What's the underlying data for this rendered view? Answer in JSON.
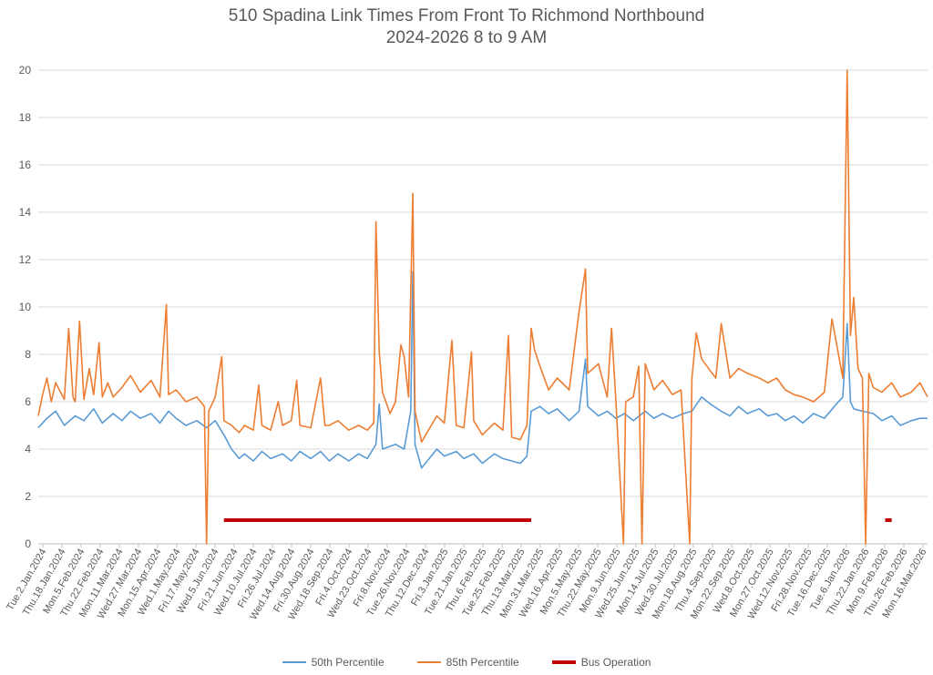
{
  "chart_data": {
    "type": "line",
    "title": "510 Spadina Link Times From Front To Richmond Northbound",
    "subtitle": "2024-2026 8 to 9 AM",
    "ylim": [
      0,
      20
    ],
    "yticks": [
      0,
      2,
      4,
      6,
      8,
      10,
      12,
      14,
      16,
      18,
      20
    ],
    "grid": true,
    "legend_position": "bottom",
    "x_range": [
      "2024-01-02",
      "2026-03-31"
    ],
    "x_tick_labels": [
      "Tue.2.Jan.2024",
      "Thu.18.Jan.2024",
      "Mon.5.Feb.2024",
      "Thu.22.Feb.2024",
      "Mon.11.Mar.2024",
      "Wed.27.Mar.2024",
      "Mon.15.Apr.2024",
      "Wed.1.May.2024",
      "Fri.17.May.2024",
      "Wed.5.Jun.2024",
      "Fri.21.Jun.2024",
      "Wed.10.Jul.2024",
      "Fri.26.Jul.2024",
      "Wed.14.Aug.2024",
      "Fri.30.Aug.2024",
      "Wed.18.Sep.2024",
      "Fri.4.Oct.2024",
      "Wed.23.Oct.2024",
      "Fri.8.Nov.2024",
      "Tue.26.Nov.2024",
      "Thu.12.Dec.2024",
      "Fri.3.Jan.2025",
      "Tue.21.Jan.2025",
      "Thu.6.Feb.2025",
      "Tue.25.Feb.2025",
      "Thu.13.Mar.2025",
      "Mon.31.Mar.2025",
      "Wed.16.Apr.2025",
      "Mon.5.May.2025",
      "Thu.22.May.2025",
      "Mon.9.Jun.2025",
      "Wed.25.Jun.2025",
      "Mon.14.Jul.2025",
      "Wed.30.Jul.2025",
      "Mon.18.Aug.2025",
      "Thu.4.Sep.2025",
      "Mon.22.Sep.2025",
      "Wed.8.Oct.2025",
      "Mon.27.Oct.2025",
      "Wed.12.Nov.2025",
      "Fri.28.Nov.2025",
      "Tue.16.Dec.2025",
      "Tue.6.Jan.2026",
      "Thu.22.Jan.2026",
      "Mon.9.Feb.2026",
      "Thu.26.Feb.2026",
      "Mon.16.Mar.2026"
    ],
    "series": [
      {
        "name": "50th Percentile",
        "color": "#5b9bd5",
        "points": [
          [
            "2024-01-02",
            4.9
          ],
          [
            "2024-01-10",
            5.3
          ],
          [
            "2024-01-18",
            5.6
          ],
          [
            "2024-01-26",
            5.0
          ],
          [
            "2024-02-05",
            5.4
          ],
          [
            "2024-02-13",
            5.2
          ],
          [
            "2024-02-22",
            5.7
          ],
          [
            "2024-03-01",
            5.1
          ],
          [
            "2024-03-11",
            5.5
          ],
          [
            "2024-03-19",
            5.2
          ],
          [
            "2024-03-27",
            5.6
          ],
          [
            "2024-04-05",
            5.3
          ],
          [
            "2024-04-15",
            5.5
          ],
          [
            "2024-04-23",
            5.1
          ],
          [
            "2024-05-01",
            5.6
          ],
          [
            "2024-05-08",
            5.3
          ],
          [
            "2024-05-17",
            5.0
          ],
          [
            "2024-05-27",
            5.2
          ],
          [
            "2024-06-05",
            4.9
          ],
          [
            "2024-06-13",
            5.2
          ],
          [
            "2024-06-21",
            4.6
          ],
          [
            "2024-06-28",
            4.0
          ],
          [
            "2024-07-05",
            3.6
          ],
          [
            "2024-07-10",
            3.8
          ],
          [
            "2024-07-18",
            3.5
          ],
          [
            "2024-07-26",
            3.9
          ],
          [
            "2024-08-03",
            3.6
          ],
          [
            "2024-08-14",
            3.8
          ],
          [
            "2024-08-22",
            3.5
          ],
          [
            "2024-08-30",
            3.9
          ],
          [
            "2024-09-09",
            3.6
          ],
          [
            "2024-09-18",
            3.9
          ],
          [
            "2024-09-26",
            3.5
          ],
          [
            "2024-10-04",
            3.8
          ],
          [
            "2024-10-14",
            3.5
          ],
          [
            "2024-10-23",
            3.8
          ],
          [
            "2024-10-31",
            3.6
          ],
          [
            "2024-11-08",
            4.2
          ],
          [
            "2024-11-11",
            5.9
          ],
          [
            "2024-11-14",
            4.0
          ],
          [
            "2024-11-26",
            4.2
          ],
          [
            "2024-12-04",
            4.0
          ],
          [
            "2024-12-10",
            5.6
          ],
          [
            "2024-12-12",
            11.5
          ],
          [
            "2024-12-14",
            4.2
          ],
          [
            "2024-12-20",
            3.2
          ],
          [
            "2025-01-03",
            4.0
          ],
          [
            "2025-01-10",
            3.7
          ],
          [
            "2025-01-21",
            3.9
          ],
          [
            "2025-01-28",
            3.6
          ],
          [
            "2025-02-06",
            3.8
          ],
          [
            "2025-02-14",
            3.4
          ],
          [
            "2025-02-25",
            3.8
          ],
          [
            "2025-03-05",
            3.6
          ],
          [
            "2025-03-13",
            3.5
          ],
          [
            "2025-03-21",
            3.4
          ],
          [
            "2025-03-27",
            3.7
          ],
          [
            "2025-03-31",
            5.6
          ],
          [
            "2025-04-08",
            5.8
          ],
          [
            "2025-04-16",
            5.5
          ],
          [
            "2025-04-24",
            5.7
          ],
          [
            "2025-05-05",
            5.2
          ],
          [
            "2025-05-14",
            5.6
          ],
          [
            "2025-05-20",
            7.8
          ],
          [
            "2025-05-22",
            5.8
          ],
          [
            "2025-06-01",
            5.4
          ],
          [
            "2025-06-09",
            5.6
          ],
          [
            "2025-06-17",
            5.3
          ],
          [
            "2025-06-25",
            5.5
          ],
          [
            "2025-07-03",
            5.2
          ],
          [
            "2025-07-14",
            5.6
          ],
          [
            "2025-07-22",
            5.3
          ],
          [
            "2025-07-30",
            5.5
          ],
          [
            "2025-08-08",
            5.3
          ],
          [
            "2025-08-18",
            5.5
          ],
          [
            "2025-08-26",
            5.6
          ],
          [
            "2025-09-04",
            6.2
          ],
          [
            "2025-09-12",
            5.9
          ],
          [
            "2025-09-22",
            5.6
          ],
          [
            "2025-09-30",
            5.4
          ],
          [
            "2025-10-08",
            5.8
          ],
          [
            "2025-10-16",
            5.5
          ],
          [
            "2025-10-27",
            5.7
          ],
          [
            "2025-11-04",
            5.4
          ],
          [
            "2025-11-12",
            5.5
          ],
          [
            "2025-11-20",
            5.2
          ],
          [
            "2025-11-28",
            5.4
          ],
          [
            "2025-12-06",
            5.1
          ],
          [
            "2025-12-16",
            5.5
          ],
          [
            "2025-12-26",
            5.3
          ],
          [
            "2026-01-06",
            5.9
          ],
          [
            "2026-01-12",
            6.2
          ],
          [
            "2026-01-16",
            9.3
          ],
          [
            "2026-01-19",
            6.0
          ],
          [
            "2026-01-22",
            5.7
          ],
          [
            "2026-01-30",
            5.6
          ],
          [
            "2026-02-09",
            5.5
          ],
          [
            "2026-02-17",
            5.2
          ],
          [
            "2026-02-26",
            5.4
          ],
          [
            "2026-03-06",
            5.0
          ],
          [
            "2026-03-16",
            5.2
          ],
          [
            "2026-03-24",
            5.3
          ],
          [
            "2026-03-31",
            5.3
          ]
        ]
      },
      {
        "name": "85th Percentile",
        "color": "#ed7d31",
        "points": [
          [
            "2024-01-02",
            5.4
          ],
          [
            "2024-01-06",
            6.3
          ],
          [
            "2024-01-10",
            7.0
          ],
          [
            "2024-01-14",
            6.0
          ],
          [
            "2024-01-18",
            6.8
          ],
          [
            "2024-01-26",
            6.1
          ],
          [
            "2024-01-30",
            9.1
          ],
          [
            "2024-02-03",
            6.2
          ],
          [
            "2024-02-05",
            6.0
          ],
          [
            "2024-02-09",
            9.4
          ],
          [
            "2024-02-13",
            6.1
          ],
          [
            "2024-02-18",
            7.4
          ],
          [
            "2024-02-22",
            6.3
          ],
          [
            "2024-02-27",
            8.5
          ],
          [
            "2024-03-01",
            6.2
          ],
          [
            "2024-03-06",
            6.8
          ],
          [
            "2024-03-11",
            6.2
          ],
          [
            "2024-03-19",
            6.6
          ],
          [
            "2024-03-27",
            7.1
          ],
          [
            "2024-04-05",
            6.4
          ],
          [
            "2024-04-15",
            6.9
          ],
          [
            "2024-04-23",
            6.2
          ],
          [
            "2024-04-29",
            10.1
          ],
          [
            "2024-05-01",
            6.3
          ],
          [
            "2024-05-08",
            6.5
          ],
          [
            "2024-05-17",
            6.0
          ],
          [
            "2024-05-27",
            6.2
          ],
          [
            "2024-06-03",
            5.8
          ],
          [
            "2024-06-05",
            0.0
          ],
          [
            "2024-06-07",
            5.6
          ],
          [
            "2024-06-13",
            6.2
          ],
          [
            "2024-06-19",
            7.9
          ],
          [
            "2024-06-21",
            5.2
          ],
          [
            "2024-06-28",
            5.0
          ],
          [
            "2024-07-05",
            4.7
          ],
          [
            "2024-07-10",
            5.0
          ],
          [
            "2024-07-18",
            4.8
          ],
          [
            "2024-07-23",
            6.7
          ],
          [
            "2024-07-26",
            5.0
          ],
          [
            "2024-08-03",
            4.8
          ],
          [
            "2024-08-10",
            6.0
          ],
          [
            "2024-08-14",
            5.0
          ],
          [
            "2024-08-22",
            5.2
          ],
          [
            "2024-08-27",
            6.9
          ],
          [
            "2024-08-30",
            5.0
          ],
          [
            "2024-09-09",
            4.9
          ],
          [
            "2024-09-18",
            7.0
          ],
          [
            "2024-09-22",
            5.0
          ],
          [
            "2024-09-26",
            5.0
          ],
          [
            "2024-10-04",
            5.2
          ],
          [
            "2024-10-14",
            4.8
          ],
          [
            "2024-10-23",
            5.0
          ],
          [
            "2024-10-31",
            4.8
          ],
          [
            "2024-11-06",
            5.1
          ],
          [
            "2024-11-08",
            13.6
          ],
          [
            "2024-11-11",
            8.1
          ],
          [
            "2024-11-14",
            6.4
          ],
          [
            "2024-11-21",
            5.5
          ],
          [
            "2024-11-26",
            6.0
          ],
          [
            "2024-12-01",
            8.4
          ],
          [
            "2024-12-04",
            7.9
          ],
          [
            "2024-12-08",
            6.2
          ],
          [
            "2024-12-12",
            14.8
          ],
          [
            "2024-12-14",
            5.6
          ],
          [
            "2024-12-20",
            4.3
          ],
          [
            "2025-01-03",
            5.4
          ],
          [
            "2025-01-10",
            5.1
          ],
          [
            "2025-01-17",
            8.6
          ],
          [
            "2025-01-21",
            5.0
          ],
          [
            "2025-01-28",
            4.9
          ],
          [
            "2025-02-04",
            8.1
          ],
          [
            "2025-02-06",
            5.2
          ],
          [
            "2025-02-14",
            4.6
          ],
          [
            "2025-02-25",
            5.1
          ],
          [
            "2025-03-05",
            4.8
          ],
          [
            "2025-03-10",
            8.8
          ],
          [
            "2025-03-13",
            4.5
          ],
          [
            "2025-03-21",
            4.4
          ],
          [
            "2025-03-27",
            5.0
          ],
          [
            "2025-03-31",
            9.1
          ],
          [
            "2025-04-03",
            8.2
          ],
          [
            "2025-04-08",
            7.5
          ],
          [
            "2025-04-16",
            6.5
          ],
          [
            "2025-04-24",
            7.0
          ],
          [
            "2025-05-05",
            6.5
          ],
          [
            "2025-05-14",
            9.8
          ],
          [
            "2025-05-20",
            11.6
          ],
          [
            "2025-05-22",
            7.2
          ],
          [
            "2025-06-01",
            7.6
          ],
          [
            "2025-06-09",
            6.2
          ],
          [
            "2025-06-13",
            9.1
          ],
          [
            "2025-06-17",
            6.0
          ],
          [
            "2025-06-24",
            0.0
          ],
          [
            "2025-06-26",
            6.0
          ],
          [
            "2025-07-03",
            6.2
          ],
          [
            "2025-07-08",
            7.5
          ],
          [
            "2025-07-11",
            0.0
          ],
          [
            "2025-07-14",
            7.6
          ],
          [
            "2025-07-22",
            6.5
          ],
          [
            "2025-07-30",
            6.9
          ],
          [
            "2025-08-08",
            6.3
          ],
          [
            "2025-08-16",
            6.5
          ],
          [
            "2025-08-24",
            0.0
          ],
          [
            "2025-08-26",
            7.0
          ],
          [
            "2025-08-30",
            8.9
          ],
          [
            "2025-09-04",
            7.8
          ],
          [
            "2025-09-12",
            7.3
          ],
          [
            "2025-09-17",
            7.0
          ],
          [
            "2025-09-22",
            9.3
          ],
          [
            "2025-09-30",
            7.0
          ],
          [
            "2025-10-08",
            7.4
          ],
          [
            "2025-10-16",
            7.2
          ],
          [
            "2025-10-27",
            7.0
          ],
          [
            "2025-11-04",
            6.8
          ],
          [
            "2025-11-12",
            7.0
          ],
          [
            "2025-11-20",
            6.5
          ],
          [
            "2025-11-28",
            6.3
          ],
          [
            "2025-12-06",
            6.2
          ],
          [
            "2025-12-16",
            6.0
          ],
          [
            "2025-12-26",
            6.4
          ],
          [
            "2026-01-02",
            9.5
          ],
          [
            "2026-01-06",
            8.5
          ],
          [
            "2026-01-12",
            7.0
          ],
          [
            "2026-01-16",
            20.0
          ],
          [
            "2026-01-19",
            8.8
          ],
          [
            "2026-01-22",
            10.4
          ],
          [
            "2026-01-26",
            7.4
          ],
          [
            "2026-01-30",
            7.0
          ],
          [
            "2026-02-02",
            0.0
          ],
          [
            "2026-02-05",
            7.2
          ],
          [
            "2026-02-09",
            6.6
          ],
          [
            "2026-02-17",
            6.4
          ],
          [
            "2026-02-26",
            6.8
          ],
          [
            "2026-03-06",
            6.2
          ],
          [
            "2026-03-16",
            6.4
          ],
          [
            "2026-03-24",
            6.8
          ],
          [
            "2026-03-31",
            6.2
          ]
        ]
      },
      {
        "name": "Bus Operation",
        "color": "#c00000",
        "segments": [
          [
            [
              "2024-06-21",
              1.0
            ],
            [
              "2025-03-31",
              1.0
            ]
          ],
          [
            [
              "2026-02-20",
              1.0
            ],
            [
              "2026-02-26",
              1.0
            ]
          ]
        ]
      }
    ]
  }
}
